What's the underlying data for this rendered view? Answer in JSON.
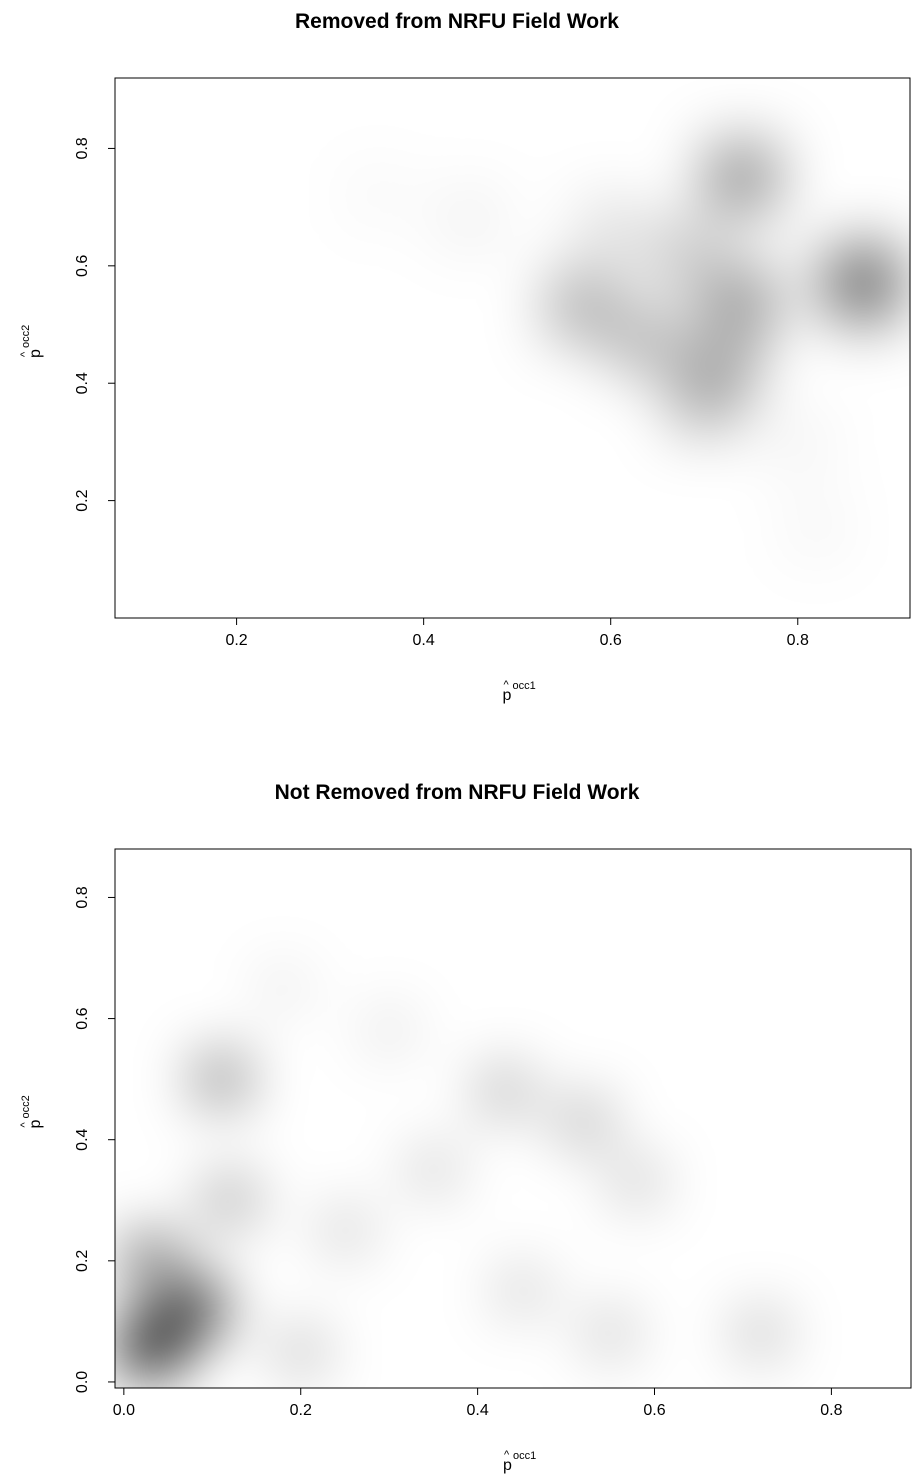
{
  "chart_data": [
    {
      "type": "heatmap",
      "title": "Removed from NRFU Field Work",
      "xlabel": "p̂ occ1",
      "ylabel": "p̂ occ2",
      "xlabel_base": "p",
      "xlabel_sup": "occ1",
      "ylabel_base": "p",
      "ylabel_sup": "occ2",
      "xlim": [
        0.07,
        0.92
      ],
      "ylim": [
        0.0,
        0.92
      ],
      "xticks": [
        0.2,
        0.4,
        0.6,
        0.8
      ],
      "xtick_labels": [
        "0.2",
        "0.4",
        "0.6",
        "0.8"
      ],
      "yticks": [
        0.2,
        0.4,
        0.6,
        0.8
      ],
      "ytick_labels": [
        "0.2",
        "0.4",
        "0.6",
        "0.8"
      ],
      "color_scale": "white-to-black density",
      "density_peaks": [
        {
          "x": 0.87,
          "y": 0.57,
          "intensity": 1.0
        },
        {
          "x": 0.74,
          "y": 0.75,
          "intensity": 0.7
        },
        {
          "x": 0.74,
          "y": 0.54,
          "intensity": 0.65
        },
        {
          "x": 0.57,
          "y": 0.53,
          "intensity": 0.55
        },
        {
          "x": 0.64,
          "y": 0.47,
          "intensity": 0.5
        },
        {
          "x": 0.7,
          "y": 0.37,
          "intensity": 0.45
        },
        {
          "x": 0.72,
          "y": 0.43,
          "intensity": 0.5
        },
        {
          "x": 0.68,
          "y": 0.62,
          "intensity": 0.4
        },
        {
          "x": 0.6,
          "y": 0.66,
          "intensity": 0.25
        },
        {
          "x": 0.45,
          "y": 0.68,
          "intensity": 0.12
        },
        {
          "x": 0.35,
          "y": 0.72,
          "intensity": 0.06
        },
        {
          "x": 0.8,
          "y": 0.3,
          "intensity": 0.1
        },
        {
          "x": 0.82,
          "y": 0.15,
          "intensity": 0.08
        }
      ]
    },
    {
      "type": "heatmap",
      "title": "Not Removed from NRFU Field Work",
      "xlabel": "p̂ occ1",
      "ylabel": "p̂ occ2",
      "xlabel_base": "p",
      "xlabel_sup": "occ1",
      "ylabel_base": "p",
      "ylabel_sup": "occ2",
      "xlim": [
        -0.01,
        0.89
      ],
      "ylim": [
        -0.01,
        0.88
      ],
      "xticks": [
        0.0,
        0.2,
        0.4,
        0.6,
        0.8
      ],
      "xtick_labels": [
        "0.0",
        "0.2",
        "0.4",
        "0.6",
        "0.8"
      ],
      "yticks": [
        0.0,
        0.2,
        0.4,
        0.6,
        0.8
      ],
      "ytick_labels": [
        "0.0",
        "0.2",
        "0.4",
        "0.6",
        "0.8"
      ],
      "color_scale": "white-to-black density",
      "density_peaks": [
        {
          "x": 0.03,
          "y": 0.06,
          "intensity": 1.0
        },
        {
          "x": 0.08,
          "y": 0.12,
          "intensity": 0.75
        },
        {
          "x": 0.03,
          "y": 0.2,
          "intensity": 0.55
        },
        {
          "x": 0.11,
          "y": 0.5,
          "intensity": 0.45
        },
        {
          "x": 0.12,
          "y": 0.3,
          "intensity": 0.35
        },
        {
          "x": 0.25,
          "y": 0.25,
          "intensity": 0.2
        },
        {
          "x": 0.2,
          "y": 0.05,
          "intensity": 0.25
        },
        {
          "x": 0.43,
          "y": 0.48,
          "intensity": 0.3
        },
        {
          "x": 0.52,
          "y": 0.43,
          "intensity": 0.3
        },
        {
          "x": 0.58,
          "y": 0.33,
          "intensity": 0.22
        },
        {
          "x": 0.35,
          "y": 0.35,
          "intensity": 0.2
        },
        {
          "x": 0.45,
          "y": 0.15,
          "intensity": 0.2
        },
        {
          "x": 0.55,
          "y": 0.08,
          "intensity": 0.22
        },
        {
          "x": 0.72,
          "y": 0.08,
          "intensity": 0.25
        },
        {
          "x": 0.3,
          "y": 0.58,
          "intensity": 0.12
        },
        {
          "x": 0.18,
          "y": 0.65,
          "intensity": 0.1
        }
      ]
    }
  ]
}
